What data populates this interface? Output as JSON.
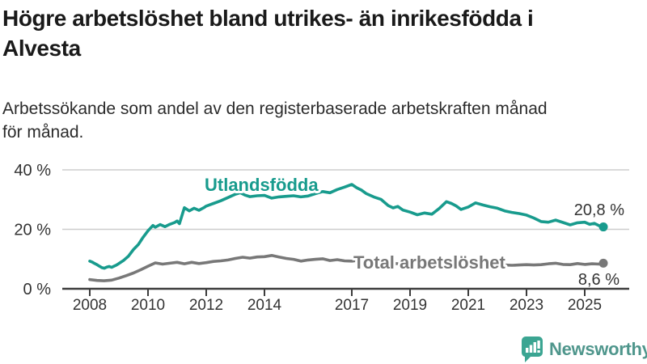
{
  "header": {
    "title_lines": [
      "Högre arbetslöshet bland utrikes- än inrikesfödda i",
      "Alvesta"
    ],
    "subtitle_lines": [
      "Arbetssökande som andel av den registerbaserade arbetskraften månad",
      "för månad."
    ]
  },
  "footer": {
    "brand": "Newsworthy",
    "brand_color": "#4f968c",
    "icon_color": "#3ba592"
  },
  "chart_data": {
    "type": "line",
    "title": "Högre arbetslöshet bland utrikes- än inrikesfödda i Alvesta",
    "subtitle": "Arbetssökande som andel av den registerbaserade arbetskraften månad för månad.",
    "ylabel": "",
    "xlabel": "",
    "ylim": [
      0,
      44
    ],
    "grid": "horizontal",
    "legend_position": "inline-labels",
    "y_ticks": [
      {
        "value": 0,
        "label": "0 %"
      },
      {
        "value": 20,
        "label": "20 %"
      },
      {
        "value": 40,
        "label": "40 %"
      }
    ],
    "x_ticks": [
      {
        "value": 2008,
        "label": "2008"
      },
      {
        "value": 2010,
        "label": "2010"
      },
      {
        "value": 2012,
        "label": "2012"
      },
      {
        "value": 2014,
        "label": "2014"
      },
      {
        "value": 2017,
        "label": "2017"
      },
      {
        "value": 2019,
        "label": "2019"
      },
      {
        "value": 2021,
        "label": "2021"
      },
      {
        "value": 2023,
        "label": "2023"
      },
      {
        "value": 2025,
        "label": "2025"
      }
    ],
    "series": [
      {
        "name": "Utlandsfödda",
        "color": "#189b8d",
        "end_value": 20.8,
        "end_value_label": "20,8 %",
        "points": [
          [
            2008.0,
            9.3
          ],
          [
            2008.08,
            9.0
          ],
          [
            2008.17,
            8.5
          ],
          [
            2008.25,
            8.1
          ],
          [
            2008.33,
            7.6
          ],
          [
            2008.42,
            7.1
          ],
          [
            2008.5,
            6.9
          ],
          [
            2008.58,
            7.3
          ],
          [
            2008.67,
            7.5
          ],
          [
            2008.75,
            7.2
          ],
          [
            2008.83,
            7.6
          ],
          [
            2008.92,
            8.0
          ],
          [
            2009.0,
            8.5
          ],
          [
            2009.17,
            9.6
          ],
          [
            2009.33,
            11.0
          ],
          [
            2009.5,
            13.2
          ],
          [
            2009.67,
            14.9
          ],
          [
            2009.83,
            17.3
          ],
          [
            2010.0,
            19.5
          ],
          [
            2010.17,
            21.3
          ],
          [
            2010.25,
            20.7
          ],
          [
            2010.42,
            21.6
          ],
          [
            2010.58,
            20.9
          ],
          [
            2010.75,
            21.7
          ],
          [
            2010.92,
            22.3
          ],
          [
            2011.0,
            22.8
          ],
          [
            2011.08,
            21.9
          ],
          [
            2011.25,
            27.3
          ],
          [
            2011.42,
            26.2
          ],
          [
            2011.58,
            27.1
          ],
          [
            2011.75,
            26.4
          ],
          [
            2011.92,
            27.3
          ],
          [
            2012.0,
            27.8
          ],
          [
            2012.25,
            28.7
          ],
          [
            2012.5,
            29.6
          ],
          [
            2012.75,
            30.7
          ],
          [
            2013.0,
            31.8
          ],
          [
            2013.17,
            32.3
          ],
          [
            2013.33,
            31.5
          ],
          [
            2013.5,
            31.0
          ],
          [
            2013.75,
            31.3
          ],
          [
            2014.0,
            31.4
          ],
          [
            2014.25,
            30.5
          ],
          [
            2014.5,
            30.9
          ],
          [
            2014.75,
            31.1
          ],
          [
            2015.0,
            31.3
          ],
          [
            2015.25,
            30.9
          ],
          [
            2015.5,
            31.2
          ],
          [
            2015.75,
            32.0
          ],
          [
            2016.0,
            32.7
          ],
          [
            2016.25,
            32.3
          ],
          [
            2016.5,
            33.4
          ],
          [
            2016.75,
            34.2
          ],
          [
            2017.0,
            35.1
          ],
          [
            2017.17,
            34.0
          ],
          [
            2017.33,
            33.2
          ],
          [
            2017.5,
            32.0
          ],
          [
            2017.75,
            30.9
          ],
          [
            2018.0,
            30.1
          ],
          [
            2018.25,
            28.0
          ],
          [
            2018.42,
            27.2
          ],
          [
            2018.58,
            27.7
          ],
          [
            2018.75,
            26.5
          ],
          [
            2019.0,
            25.8
          ],
          [
            2019.25,
            24.9
          ],
          [
            2019.5,
            25.5
          ],
          [
            2019.75,
            25.1
          ],
          [
            2020.0,
            27.0
          ],
          [
            2020.25,
            29.3
          ],
          [
            2020.42,
            28.7
          ],
          [
            2020.58,
            27.9
          ],
          [
            2020.75,
            26.7
          ],
          [
            2021.0,
            27.5
          ],
          [
            2021.25,
            28.9
          ],
          [
            2021.5,
            28.2
          ],
          [
            2021.75,
            27.6
          ],
          [
            2022.0,
            27.1
          ],
          [
            2022.25,
            26.2
          ],
          [
            2022.5,
            25.7
          ],
          [
            2022.75,
            25.3
          ],
          [
            2023.0,
            24.8
          ],
          [
            2023.25,
            23.8
          ],
          [
            2023.5,
            22.6
          ],
          [
            2023.75,
            22.4
          ],
          [
            2024.0,
            23.1
          ],
          [
            2024.25,
            22.3
          ],
          [
            2024.5,
            21.5
          ],
          [
            2024.75,
            22.2
          ],
          [
            2025.0,
            22.4
          ],
          [
            2025.17,
            21.7
          ],
          [
            2025.33,
            22.0
          ],
          [
            2025.5,
            21.2
          ],
          [
            2025.64,
            20.8
          ]
        ]
      },
      {
        "name": "Total arbetslöshet",
        "color": "#787878",
        "end_value": 8.6,
        "end_value_label": "8,6 %",
        "points": [
          [
            2008.0,
            3.1
          ],
          [
            2008.25,
            2.8
          ],
          [
            2008.5,
            2.7
          ],
          [
            2008.75,
            2.9
          ],
          [
            2009.0,
            3.6
          ],
          [
            2009.25,
            4.4
          ],
          [
            2009.5,
            5.3
          ],
          [
            2009.75,
            6.4
          ],
          [
            2010.0,
            7.6
          ],
          [
            2010.25,
            8.7
          ],
          [
            2010.5,
            8.3
          ],
          [
            2010.75,
            8.6
          ],
          [
            2011.0,
            8.9
          ],
          [
            2011.25,
            8.4
          ],
          [
            2011.5,
            8.9
          ],
          [
            2011.75,
            8.5
          ],
          [
            2012.0,
            8.8
          ],
          [
            2012.25,
            9.2
          ],
          [
            2012.5,
            9.4
          ],
          [
            2012.75,
            9.7
          ],
          [
            2013.0,
            10.2
          ],
          [
            2013.25,
            10.6
          ],
          [
            2013.5,
            10.3
          ],
          [
            2013.75,
            10.7
          ],
          [
            2014.0,
            10.8
          ],
          [
            2014.25,
            11.2
          ],
          [
            2014.5,
            10.7
          ],
          [
            2014.75,
            10.2
          ],
          [
            2015.0,
            9.9
          ],
          [
            2015.25,
            9.3
          ],
          [
            2015.5,
            9.7
          ],
          [
            2015.75,
            9.9
          ],
          [
            2016.0,
            10.1
          ],
          [
            2016.25,
            9.5
          ],
          [
            2016.5,
            9.8
          ],
          [
            2016.75,
            9.4
          ],
          [
            2017.0,
            9.3
          ],
          [
            2017.25,
            9.6
          ],
          [
            2017.5,
            9.4
          ],
          [
            2017.75,
            9.1
          ],
          [
            2018.0,
            8.9
          ],
          [
            2018.25,
            8.7
          ],
          [
            2018.5,
            8.5
          ],
          [
            2018.75,
            8.3
          ],
          [
            2019.0,
            8.2
          ],
          [
            2019.25,
            8.0
          ],
          [
            2019.5,
            8.1
          ],
          [
            2019.75,
            8.3
          ],
          [
            2020.0,
            8.8
          ],
          [
            2020.25,
            9.4
          ],
          [
            2020.5,
            9.3
          ],
          [
            2020.75,
            9.1
          ],
          [
            2021.0,
            9.2
          ],
          [
            2021.25,
            9.0
          ],
          [
            2021.5,
            8.7
          ],
          [
            2021.75,
            8.4
          ],
          [
            2022.0,
            8.2
          ],
          [
            2022.25,
            8.0
          ],
          [
            2022.5,
            7.9
          ],
          [
            2022.75,
            8.0
          ],
          [
            2023.0,
            8.1
          ],
          [
            2023.25,
            8.0
          ],
          [
            2023.5,
            8.1
          ],
          [
            2023.75,
            8.4
          ],
          [
            2024.0,
            8.6
          ],
          [
            2024.25,
            8.2
          ],
          [
            2024.5,
            8.1
          ],
          [
            2024.75,
            8.5
          ],
          [
            2025.0,
            8.2
          ],
          [
            2025.25,
            8.4
          ],
          [
            2025.5,
            8.3
          ],
          [
            2025.64,
            8.6
          ]
        ]
      }
    ]
  }
}
